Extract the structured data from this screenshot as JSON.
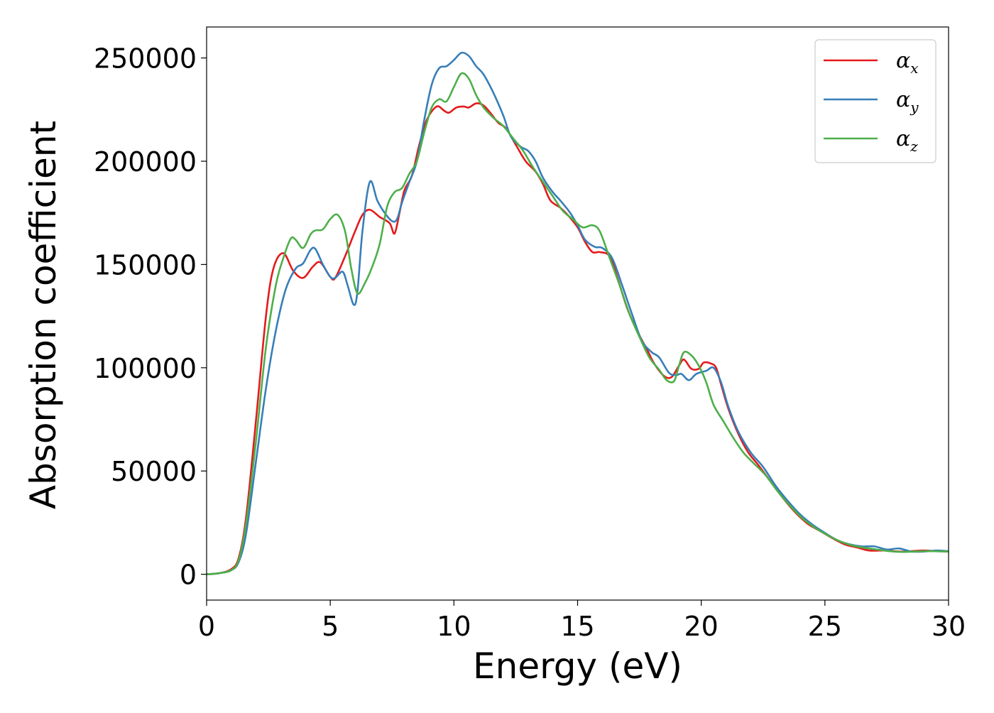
{
  "chart_data": {
    "type": "line",
    "xlabel": "Energy (eV)",
    "ylabel": "Absorption coefficient",
    "xlim": [
      0,
      30
    ],
    "ylim": [
      -12500,
      265000
    ],
    "x_ticks": [
      "0",
      "5",
      "10",
      "15",
      "20",
      "25",
      "30"
    ],
    "x_tick_values": [
      0,
      5,
      10,
      15,
      20,
      25,
      30
    ],
    "y_ticks": [
      "0",
      "50000",
      "100000",
      "150000",
      "200000",
      "250000"
    ],
    "y_tick_values": [
      0,
      50000,
      100000,
      150000,
      200000,
      250000
    ],
    "grid": false,
    "legend_position": "top-right",
    "series": [
      {
        "name": "α_x",
        "symbol": "α",
        "subscript": "x",
        "color": "#e41a1c",
        "points": [
          [
            0,
            0
          ],
          [
            0.5,
            500
          ],
          [
            1.0,
            2500
          ],
          [
            1.3,
            8000
          ],
          [
            1.6,
            28000
          ],
          [
            2.0,
            75000
          ],
          [
            2.4,
            125000
          ],
          [
            2.7,
            148000
          ],
          [
            3.1,
            155500
          ],
          [
            3.5,
            147000
          ],
          [
            3.9,
            143500
          ],
          [
            4.3,
            149000
          ],
          [
            4.6,
            151000
          ],
          [
            5.0,
            144000
          ],
          [
            5.2,
            143500
          ],
          [
            5.6,
            154000
          ],
          [
            6.0,
            166000
          ],
          [
            6.3,
            174000
          ],
          [
            6.6,
            176500
          ],
          [
            7.0,
            173000
          ],
          [
            7.4,
            170000
          ],
          [
            7.6,
            165000
          ],
          [
            7.8,
            175000
          ],
          [
            8.0,
            186000
          ],
          [
            8.3,
            193000
          ],
          [
            8.6,
            208000
          ],
          [
            8.9,
            220000
          ],
          [
            9.3,
            226500
          ],
          [
            9.6,
            224500
          ],
          [
            9.8,
            223500
          ],
          [
            10.1,
            226000
          ],
          [
            10.4,
            226500
          ],
          [
            10.6,
            226000
          ],
          [
            10.9,
            228000
          ],
          [
            11.2,
            227000
          ],
          [
            11.5,
            223000
          ],
          [
            11.8,
            218500
          ],
          [
            12.1,
            216000
          ],
          [
            12.5,
            208000
          ],
          [
            12.9,
            200000
          ],
          [
            13.3,
            195000
          ],
          [
            13.6,
            189000
          ],
          [
            13.9,
            181000
          ],
          [
            14.3,
            177500
          ],
          [
            14.6,
            174000
          ],
          [
            15.0,
            168000
          ],
          [
            15.3,
            161000
          ],
          [
            15.6,
            156000
          ],
          [
            15.9,
            156000
          ],
          [
            16.3,
            154000
          ],
          [
            16.6,
            144000
          ],
          [
            17.0,
            129000
          ],
          [
            17.4,
            118000
          ],
          [
            17.8,
            109000
          ],
          [
            18.1,
            102000
          ],
          [
            18.5,
            96000
          ],
          [
            18.8,
            95500
          ],
          [
            19.1,
            101000
          ],
          [
            19.3,
            104000
          ],
          [
            19.6,
            99500
          ],
          [
            19.9,
            99500
          ],
          [
            20.1,
            102500
          ],
          [
            20.4,
            102000
          ],
          [
            20.6,
            100000
          ],
          [
            20.8,
            92000
          ],
          [
            21.1,
            80000
          ],
          [
            21.5,
            68000
          ],
          [
            21.9,
            59000
          ],
          [
            22.3,
            53000
          ],
          [
            22.8,
            45000
          ],
          [
            23.3,
            37000
          ],
          [
            23.8,
            30000
          ],
          [
            24.3,
            24500
          ],
          [
            24.8,
            21000
          ],
          [
            25.3,
            17500
          ],
          [
            25.8,
            14500
          ],
          [
            26.3,
            13000
          ],
          [
            26.8,
            11500
          ],
          [
            27.4,
            11500
          ],
          [
            28.0,
            11000
          ],
          [
            28.5,
            11200
          ],
          [
            29.0,
            11500
          ],
          [
            29.5,
            11200
          ],
          [
            30.0,
            11000
          ]
        ]
      },
      {
        "name": "α_y",
        "symbol": "α",
        "subscript": "y",
        "color": "#377eb8",
        "points": [
          [
            0,
            0
          ],
          [
            0.5,
            500
          ],
          [
            1.0,
            2000
          ],
          [
            1.3,
            6000
          ],
          [
            1.6,
            20000
          ],
          [
            2.0,
            55000
          ],
          [
            2.4,
            90000
          ],
          [
            2.8,
            118000
          ],
          [
            3.2,
            138000
          ],
          [
            3.6,
            148000
          ],
          [
            3.9,
            150500
          ],
          [
            4.2,
            157000
          ],
          [
            4.4,
            157500
          ],
          [
            4.7,
            150000
          ],
          [
            5.0,
            144000
          ],
          [
            5.2,
            143500
          ],
          [
            5.5,
            146500
          ],
          [
            5.7,
            140000
          ],
          [
            5.95,
            130500
          ],
          [
            6.1,
            137000
          ],
          [
            6.3,
            166000
          ],
          [
            6.6,
            190000
          ],
          [
            6.9,
            181000
          ],
          [
            7.2,
            175000
          ],
          [
            7.5,
            171000
          ],
          [
            7.7,
            172000
          ],
          [
            7.9,
            180000
          ],
          [
            8.2,
            190000
          ],
          [
            8.5,
            200000
          ],
          [
            8.8,
            220000
          ],
          [
            9.1,
            237000
          ],
          [
            9.4,
            245000
          ],
          [
            9.7,
            246000
          ],
          [
            10.0,
            249000
          ],
          [
            10.3,
            252500
          ],
          [
            10.6,
            251000
          ],
          [
            10.9,
            246000
          ],
          [
            11.2,
            242000
          ],
          [
            11.6,
            233000
          ],
          [
            12.0,
            222000
          ],
          [
            12.3,
            212000
          ],
          [
            12.7,
            207000
          ],
          [
            13.0,
            205000
          ],
          [
            13.3,
            200000
          ],
          [
            13.6,
            192000
          ],
          [
            14.0,
            185000
          ],
          [
            14.3,
            181000
          ],
          [
            14.7,
            175000
          ],
          [
            15.0,
            169000
          ],
          [
            15.3,
            162000
          ],
          [
            15.7,
            158500
          ],
          [
            16.0,
            158000
          ],
          [
            16.4,
            153000
          ],
          [
            16.8,
            140000
          ],
          [
            17.2,
            126000
          ],
          [
            17.6,
            113000
          ],
          [
            18.0,
            107500
          ],
          [
            18.3,
            105000
          ],
          [
            18.7,
            97500
          ],
          [
            19.0,
            96500
          ],
          [
            19.2,
            97000
          ],
          [
            19.5,
            94000
          ],
          [
            19.8,
            97000
          ],
          [
            20.2,
            98500
          ],
          [
            20.5,
            100000
          ],
          [
            20.8,
            93000
          ],
          [
            21.1,
            81000
          ],
          [
            21.5,
            69000
          ],
          [
            22.0,
            59000
          ],
          [
            22.5,
            52000
          ],
          [
            23.0,
            43000
          ],
          [
            23.5,
            35500
          ],
          [
            24.0,
            29000
          ],
          [
            24.5,
            24000
          ],
          [
            25.0,
            20000
          ],
          [
            25.5,
            16500
          ],
          [
            26.0,
            14500
          ],
          [
            26.5,
            13500
          ],
          [
            27.0,
            13500
          ],
          [
            27.5,
            12000
          ],
          [
            28.0,
            12500
          ],
          [
            28.5,
            11000
          ],
          [
            29.0,
            11000
          ],
          [
            29.5,
            11500
          ],
          [
            30.0,
            11200
          ]
        ]
      },
      {
        "name": "α_z",
        "symbol": "α",
        "subscript": "z",
        "color": "#4daf4a",
        "points": [
          [
            0,
            0
          ],
          [
            0.5,
            500
          ],
          [
            1.0,
            2000
          ],
          [
            1.3,
            7000
          ],
          [
            1.6,
            25000
          ],
          [
            2.0,
            65000
          ],
          [
            2.4,
            110000
          ],
          [
            2.8,
            140000
          ],
          [
            3.1,
            153000
          ],
          [
            3.4,
            162500
          ],
          [
            3.6,
            162000
          ],
          [
            3.9,
            158000
          ],
          [
            4.2,
            164500
          ],
          [
            4.4,
            166500
          ],
          [
            4.7,
            167000
          ],
          [
            5.0,
            172000
          ],
          [
            5.3,
            174000
          ],
          [
            5.6,
            166000
          ],
          [
            5.85,
            148000
          ],
          [
            6.1,
            136000
          ],
          [
            6.4,
            141000
          ],
          [
            6.7,
            149000
          ],
          [
            7.0,
            160000
          ],
          [
            7.3,
            178000
          ],
          [
            7.6,
            185000
          ],
          [
            7.9,
            187000
          ],
          [
            8.2,
            194000
          ],
          [
            8.5,
            200000
          ],
          [
            8.8,
            214000
          ],
          [
            9.1,
            226000
          ],
          [
            9.4,
            230000
          ],
          [
            9.7,
            229000
          ],
          [
            10.0,
            236000
          ],
          [
            10.3,
            242500
          ],
          [
            10.6,
            240000
          ],
          [
            10.9,
            232000
          ],
          [
            11.2,
            226000
          ],
          [
            11.6,
            221000
          ],
          [
            12.0,
            217000
          ],
          [
            12.4,
            211000
          ],
          [
            12.8,
            205000
          ],
          [
            13.2,
            197000
          ],
          [
            13.6,
            190000
          ],
          [
            14.0,
            183000
          ],
          [
            14.4,
            176000
          ],
          [
            14.8,
            172000
          ],
          [
            15.2,
            168000
          ],
          [
            15.6,
            169000
          ],
          [
            15.9,
            166000
          ],
          [
            16.3,
            153000
          ],
          [
            16.7,
            140000
          ],
          [
            17.1,
            126000
          ],
          [
            17.5,
            115000
          ],
          [
            17.9,
            105000
          ],
          [
            18.3,
            99000
          ],
          [
            18.6,
            94000
          ],
          [
            18.9,
            93500
          ],
          [
            19.1,
            101000
          ],
          [
            19.3,
            107500
          ],
          [
            19.6,
            106000
          ],
          [
            19.9,
            101000
          ],
          [
            20.2,
            93000
          ],
          [
            20.5,
            82000
          ],
          [
            20.9,
            74000
          ],
          [
            21.3,
            66000
          ],
          [
            21.7,
            59000
          ],
          [
            22.1,
            54000
          ],
          [
            22.6,
            48000
          ],
          [
            23.1,
            40000
          ],
          [
            23.6,
            33000
          ],
          [
            24.1,
            27000
          ],
          [
            24.6,
            22500
          ],
          [
            25.1,
            19000
          ],
          [
            25.6,
            16000
          ],
          [
            26.1,
            14000
          ],
          [
            26.6,
            12800
          ],
          [
            27.1,
            12000
          ],
          [
            27.6,
            11200
          ],
          [
            28.1,
            10800
          ],
          [
            28.6,
            11000
          ],
          [
            29.1,
            11200
          ],
          [
            29.6,
            11100
          ],
          [
            30.0,
            11000
          ]
        ]
      }
    ]
  }
}
